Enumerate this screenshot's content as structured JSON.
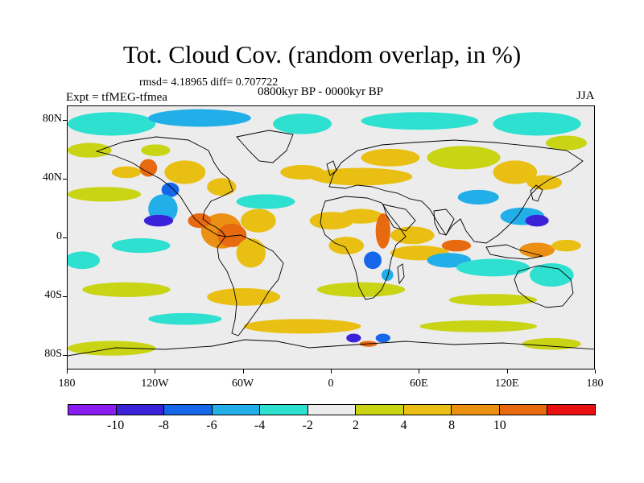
{
  "title": "Tot. Cloud Cov. (random overlap, in %)",
  "stats": "rmsd= 4.18965 diff= 0.707722",
  "experiment": "Expt = tfMEG-tfmea",
  "period": "0800kyr BP - 0000kyr BP",
  "season": "JJA",
  "map": {
    "projection": "cylindrical-equidistant",
    "lon_range": [
      -180,
      180
    ],
    "lat_range": [
      -90,
      90
    ],
    "lat_ticks": [
      {
        "lat": 80,
        "label": "80N"
      },
      {
        "lat": 40,
        "label": "40N"
      },
      {
        "lat": 0,
        "label": "0"
      },
      {
        "lat": -40,
        "label": "40S"
      },
      {
        "lat": -80,
        "label": "80S"
      }
    ],
    "lon_ticks": [
      {
        "lon": -180,
        "label": "180"
      },
      {
        "lon": -120,
        "label": "120W"
      },
      {
        "lon": -60,
        "label": "60W"
      },
      {
        "lon": 0,
        "label": "0"
      },
      {
        "lon": 60,
        "label": "60E"
      },
      {
        "lon": 120,
        "label": "120E"
      },
      {
        "lon": 180,
        "label": "180"
      }
    ]
  },
  "colorbar": {
    "colors": [
      "#8a1cf0",
      "#3a22d8",
      "#1566e8",
      "#22aee8",
      "#2ee0d0",
      "#ececec",
      "#c8d414",
      "#eabf14",
      "#eb9013",
      "#e86a10",
      "#e81010"
    ],
    "labels": [
      {
        "after_index": 0,
        "text": "-10"
      },
      {
        "after_index": 1,
        "text": "-8"
      },
      {
        "after_index": 2,
        "text": "-6"
      },
      {
        "after_index": 3,
        "text": "-4"
      },
      {
        "after_index": 4,
        "text": "-2"
      },
      {
        "after_index": 5,
        "text": "2"
      },
      {
        "after_index": 6,
        "text": "4"
      },
      {
        "after_index": 7,
        "text": "8"
      },
      {
        "after_index": 8,
        "text": "10"
      }
    ]
  },
  "anomaly_regions": [
    {
      "lon": -150,
      "lat": 78,
      "rx": 30,
      "ry": 8,
      "value": -4
    },
    {
      "lon": -90,
      "lat": 82,
      "rx": 35,
      "ry": 6,
      "value": -5
    },
    {
      "lon": -20,
      "lat": 78,
      "rx": 20,
      "ry": 7,
      "value": -4
    },
    {
      "lon": 60,
      "lat": 80,
      "rx": 40,
      "ry": 6,
      "value": -4
    },
    {
      "lon": 140,
      "lat": 78,
      "rx": 30,
      "ry": 8,
      "value": -4
    },
    {
      "lon": 160,
      "lat": 65,
      "rx": 14,
      "ry": 5,
      "value": 3
    },
    {
      "lon": -165,
      "lat": 60,
      "rx": 15,
      "ry": 5,
      "value": 3
    },
    {
      "lon": -120,
      "lat": 60,
      "rx": 10,
      "ry": 4,
      "value": 3
    },
    {
      "lon": -155,
      "lat": 30,
      "rx": 25,
      "ry": 5,
      "value": 3
    },
    {
      "lon": -140,
      "lat": 45,
      "rx": 10,
      "ry": 4,
      "value": 5
    },
    {
      "lon": -125,
      "lat": 48,
      "rx": 6,
      "ry": 6,
      "value": 10
    },
    {
      "lon": -100,
      "lat": 45,
      "rx": 14,
      "ry": 8,
      "value": 6
    },
    {
      "lon": -110,
      "lat": 33,
      "rx": 6,
      "ry": 5,
      "value": -8
    },
    {
      "lon": -115,
      "lat": 20,
      "rx": 10,
      "ry": 10,
      "value": -5
    },
    {
      "lon": -118,
      "lat": 12,
      "rx": 10,
      "ry": 4,
      "value": -9
    },
    {
      "lon": -75,
      "lat": 35,
      "rx": 10,
      "ry": 6,
      "value": 4
    },
    {
      "lon": -75,
      "lat": 5,
      "rx": 14,
      "ry": 12,
      "value": 8
    },
    {
      "lon": -68,
      "lat": 2,
      "rx": 10,
      "ry": 8,
      "value": 11
    },
    {
      "lon": -90,
      "lat": 12,
      "rx": 8,
      "ry": 5,
      "value": 10
    },
    {
      "lon": -50,
      "lat": 12,
      "rx": 12,
      "ry": 8,
      "value": 5
    },
    {
      "lon": -55,
      "lat": -10,
      "rx": 10,
      "ry": 10,
      "value": 5
    },
    {
      "lon": -45,
      "lat": 25,
      "rx": 20,
      "ry": 5,
      "value": -4
    },
    {
      "lon": -130,
      "lat": -5,
      "rx": 20,
      "ry": 5,
      "value": -3
    },
    {
      "lon": -170,
      "lat": -15,
      "rx": 12,
      "ry": 6,
      "value": -4
    },
    {
      "lon": -20,
      "lat": 45,
      "rx": 15,
      "ry": 5,
      "value": 4
    },
    {
      "lon": 20,
      "lat": 42,
      "rx": 35,
      "ry": 6,
      "value": 6
    },
    {
      "lon": 40,
      "lat": 55,
      "rx": 20,
      "ry": 6,
      "value": 4
    },
    {
      "lon": 90,
      "lat": 55,
      "rx": 25,
      "ry": 8,
      "value": 3
    },
    {
      "lon": 125,
      "lat": 45,
      "rx": 15,
      "ry": 8,
      "value": 6
    },
    {
      "lon": 145,
      "lat": 38,
      "rx": 12,
      "ry": 5,
      "value": 6
    },
    {
      "lon": 0,
      "lat": 12,
      "rx": 15,
      "ry": 6,
      "value": 6
    },
    {
      "lon": 20,
      "lat": 15,
      "rx": 15,
      "ry": 5,
      "value": 5
    },
    {
      "lon": 10,
      "lat": -5,
      "rx": 12,
      "ry": 6,
      "value": 4
    },
    {
      "lon": 35,
      "lat": 5,
      "rx": 5,
      "ry": 12,
      "value": 10
    },
    {
      "lon": 28,
      "lat": -15,
      "rx": 6,
      "ry": 6,
      "value": -7
    },
    {
      "lon": 38,
      "lat": -25,
      "rx": 4,
      "ry": 4,
      "value": -6
    },
    {
      "lon": 55,
      "lat": 2,
      "rx": 15,
      "ry": 6,
      "value": 6
    },
    {
      "lon": 60,
      "lat": -10,
      "rx": 20,
      "ry": 5,
      "value": 5
    },
    {
      "lon": 85,
      "lat": -5,
      "rx": 10,
      "ry": 4,
      "value": 11
    },
    {
      "lon": 80,
      "lat": -15,
      "rx": 15,
      "ry": 5,
      "value": -5
    },
    {
      "lon": 100,
      "lat": 28,
      "rx": 14,
      "ry": 5,
      "value": -5
    },
    {
      "lon": 130,
      "lat": 15,
      "rx": 15,
      "ry": 6,
      "value": -6
    },
    {
      "lon": 140,
      "lat": 12,
      "rx": 8,
      "ry": 4,
      "value": -9
    },
    {
      "lon": 140,
      "lat": -8,
      "rx": 12,
      "ry": 5,
      "value": 9
    },
    {
      "lon": 160,
      "lat": -5,
      "rx": 10,
      "ry": 4,
      "value": 6
    },
    {
      "lon": 110,
      "lat": -20,
      "rx": 25,
      "ry": 6,
      "value": -3
    },
    {
      "lon": 150,
      "lat": -25,
      "rx": 15,
      "ry": 8,
      "value": -4
    },
    {
      "lon": -140,
      "lat": -35,
      "rx": 30,
      "ry": 5,
      "value": 3
    },
    {
      "lon": -60,
      "lat": -40,
      "rx": 25,
      "ry": 6,
      "value": 4
    },
    {
      "lon": 20,
      "lat": -35,
      "rx": 30,
      "ry": 5,
      "value": 3
    },
    {
      "lon": 110,
      "lat": -42,
      "rx": 30,
      "ry": 4,
      "value": 3
    },
    {
      "lon": -100,
      "lat": -55,
      "rx": 25,
      "ry": 4,
      "value": -3
    },
    {
      "lon": -20,
      "lat": -60,
      "rx": 40,
      "ry": 5,
      "value": 4
    },
    {
      "lon": 100,
      "lat": -60,
      "rx": 40,
      "ry": 4,
      "value": 3
    },
    {
      "lon": 15,
      "lat": -68,
      "rx": 5,
      "ry": 3,
      "value": -10
    },
    {
      "lon": 25,
      "lat": -72,
      "rx": 6,
      "ry": 2,
      "value": 10
    },
    {
      "lon": 35,
      "lat": -68,
      "rx": 5,
      "ry": 3,
      "value": -8
    },
    {
      "lon": -150,
      "lat": -75,
      "rx": 30,
      "ry": 5,
      "value": 3
    },
    {
      "lon": 150,
      "lat": -72,
      "rx": 20,
      "ry": 4,
      "value": 3
    }
  ]
}
